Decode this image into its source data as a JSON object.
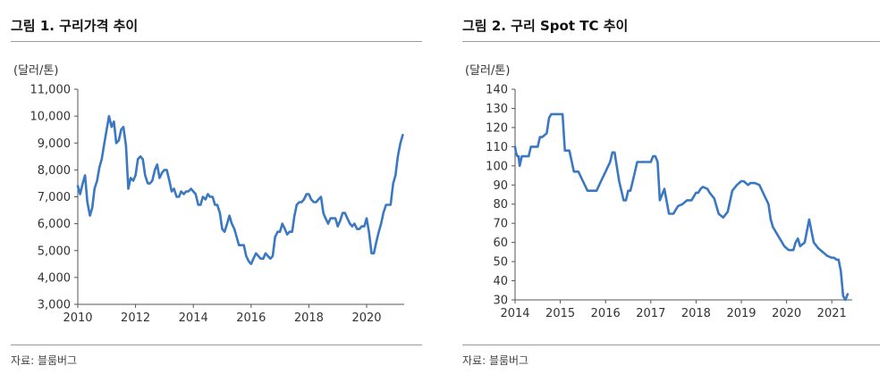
{
  "panels": [
    {
      "title": "그림 1.  구리가격 추이",
      "unit": "(달러/톤)",
      "source": "자료: 블룸버그"
    },
    {
      "title": "그림 2.  구리 Spot TC 추이",
      "unit": "(달러/톤)",
      "source": "자료: 블룸버그"
    }
  ],
  "chart_data": [
    {
      "type": "line",
      "title": "그림 1.  구리가격 추이",
      "ylabel": "(달러/톤)",
      "xlim": [
        2010,
        2021.3
      ],
      "ylim": [
        3000,
        11000
      ],
      "x_ticks": [
        2010,
        2012,
        2014,
        2016,
        2018,
        2020
      ],
      "x_tick_labels": [
        "2010",
        "2012",
        "2014",
        "2016",
        "2018",
        "2020"
      ],
      "y_ticks": [
        3000,
        4000,
        5000,
        6000,
        7000,
        8000,
        9000,
        10000,
        11000
      ],
      "y_tick_labels": [
        "3,000",
        "4,000",
        "5,000",
        "6,000",
        "7,000",
        "8,000",
        "9,000",
        "10,000",
        "11,000"
      ],
      "color": "#3a78c3",
      "series": [
        {
          "x": [
            2010.0,
            2010.08,
            2010.17,
            2010.25,
            2010.33,
            2010.42,
            2010.5,
            2010.58,
            2010.67,
            2010.75,
            2010.83,
            2010.92,
            2011.0,
            2011.08,
            2011.17,
            2011.25,
            2011.33,
            2011.42,
            2011.5,
            2011.58,
            2011.67,
            2011.75,
            2011.83,
            2011.92,
            2012.0,
            2012.08,
            2012.17,
            2012.25,
            2012.33,
            2012.42,
            2012.5,
            2012.58,
            2012.67,
            2012.75,
            2012.83,
            2012.92,
            2013.0,
            2013.08,
            2013.17,
            2013.25,
            2013.33,
            2013.42,
            2013.5,
            2013.58,
            2013.67,
            2013.75,
            2013.83,
            2013.92,
            2014.0,
            2014.08,
            2014.17,
            2014.25,
            2014.33,
            2014.42,
            2014.5,
            2014.58,
            2014.67,
            2014.75,
            2014.83,
            2014.92,
            2015.0,
            2015.08,
            2015.17,
            2015.25,
            2015.33,
            2015.42,
            2015.5,
            2015.58,
            2015.67,
            2015.75,
            2015.83,
            2015.92,
            2016.0,
            2016.08,
            2016.17,
            2016.25,
            2016.33,
            2016.42,
            2016.5,
            2016.58,
            2016.67,
            2016.75,
            2016.83,
            2016.92,
            2017.0,
            2017.08,
            2017.17,
            2017.25,
            2017.33,
            2017.42,
            2017.5,
            2017.58,
            2017.67,
            2017.75,
            2017.83,
            2017.92,
            2018.0,
            2018.08,
            2018.17,
            2018.25,
            2018.33,
            2018.42,
            2018.5,
            2018.58,
            2018.67,
            2018.75,
            2018.83,
            2018.92,
            2019.0,
            2019.08,
            2019.17,
            2019.25,
            2019.33,
            2019.42,
            2019.5,
            2019.58,
            2019.67,
            2019.75,
            2019.83,
            2019.92,
            2020.0,
            2020.08,
            2020.17,
            2020.25,
            2020.33,
            2020.42,
            2020.5,
            2020.58,
            2020.67,
            2020.75,
            2020.83,
            2020.92,
            2021.0,
            2021.08,
            2021.17,
            2021.25
          ],
          "y": [
            7400,
            7100,
            7500,
            7800,
            6800,
            6300,
            6600,
            7300,
            7600,
            8100,
            8400,
            9000,
            9500,
            10000,
            9600,
            9800,
            9000,
            9100,
            9500,
            9600,
            8900,
            7300,
            7700,
            7600,
            7800,
            8400,
            8500,
            8400,
            7800,
            7500,
            7500,
            7600,
            8000,
            8200,
            7700,
            7900,
            8000,
            8000,
            7600,
            7200,
            7300,
            7000,
            7000,
            7200,
            7100,
            7200,
            7200,
            7300,
            7200,
            7100,
            6700,
            6700,
            7000,
            6900,
            7100,
            7000,
            7000,
            6700,
            6700,
            6400,
            5800,
            5700,
            6000,
            6300,
            6000,
            5800,
            5500,
            5200,
            5200,
            5200,
            4800,
            4600,
            4500,
            4700,
            4900,
            4800,
            4700,
            4700,
            4900,
            4800,
            4700,
            4800,
            5500,
            5700,
            5700,
            6000,
            5800,
            5600,
            5700,
            5700,
            6300,
            6700,
            6800,
            6800,
            6900,
            7100,
            7100,
            6900,
            6800,
            6800,
            6900,
            7000,
            6400,
            6200,
            6000,
            6200,
            6200,
            6200,
            5900,
            6100,
            6400,
            6400,
            6200,
            6000,
            5900,
            6000,
            5800,
            5800,
            5900,
            5900,
            6200,
            5700,
            4900,
            4900,
            5300,
            5700,
            6000,
            6400,
            6700,
            6700,
            6700,
            7500,
            7800,
            8500,
            9000,
            9300
          ]
        }
      ]
    },
    {
      "type": "line",
      "title": "그림 2.  구리 Spot TC 추이",
      "ylabel": "(달러/톤)",
      "xlim": [
        2014,
        2021.45
      ],
      "ylim": [
        30,
        140
      ],
      "x_ticks": [
        2014,
        2015,
        2016,
        2017,
        2018,
        2019,
        2020,
        2021
      ],
      "x_tick_labels": [
        "2014",
        "2015",
        "2016",
        "2017",
        "2018",
        "2019",
        "2020",
        "2021"
      ],
      "y_ticks": [
        30,
        40,
        50,
        60,
        70,
        80,
        90,
        100,
        110,
        120,
        130,
        140
      ],
      "y_tick_labels": [
        "30",
        "40",
        "50",
        "60",
        "70",
        "80",
        "90",
        "100",
        "110",
        "120",
        "130",
        "140"
      ],
      "color": "#3a78c3",
      "series": [
        {
          "x": [
            2014.0,
            2014.02,
            2014.05,
            2014.08,
            2014.1,
            2014.15,
            2014.2,
            2014.25,
            2014.3,
            2014.35,
            2014.4,
            2014.5,
            2014.55,
            2014.6,
            2014.7,
            2014.75,
            2014.8,
            2014.9,
            2015.0,
            2015.05,
            2015.1,
            2015.2,
            2015.3,
            2015.4,
            2015.5,
            2015.6,
            2015.7,
            2015.8,
            2015.9,
            2016.0,
            2016.1,
            2016.15,
            2016.2,
            2016.3,
            2016.4,
            2016.45,
            2016.5,
            2016.55,
            2016.6,
            2016.7,
            2016.8,
            2016.9,
            2017.0,
            2017.05,
            2017.1,
            2017.15,
            2017.2,
            2017.3,
            2017.4,
            2017.5,
            2017.55,
            2017.6,
            2017.7,
            2017.8,
            2017.9,
            2018.0,
            2018.05,
            2018.1,
            2018.15,
            2018.25,
            2018.3,
            2018.4,
            2018.5,
            2018.6,
            2018.7,
            2018.8,
            2018.9,
            2019.0,
            2019.05,
            2019.1,
            2019.15,
            2019.2,
            2019.3,
            2019.4,
            2019.5,
            2019.6,
            2019.65,
            2019.7,
            2019.75,
            2019.8,
            2019.85,
            2019.9,
            2019.95,
            2020.0,
            2020.05,
            2020.1,
            2020.15,
            2020.2,
            2020.25,
            2020.3,
            2020.4,
            2020.5,
            2020.6,
            2020.7,
            2020.8,
            2020.9,
            2021.0,
            2021.05,
            2021.1,
            2021.15,
            2021.2,
            2021.25,
            2021.3,
            2021.35
          ],
          "y": [
            110,
            107,
            105,
            105,
            100,
            105,
            105,
            105,
            105,
            110,
            110,
            110,
            115,
            115,
            117,
            125,
            127,
            127,
            127,
            127,
            108,
            108,
            97,
            97,
            92,
            87,
            87,
            87,
            92,
            97,
            102,
            107,
            107,
            92,
            82,
            82,
            87,
            87,
            92,
            102,
            102,
            102,
            102,
            105,
            105,
            102,
            82,
            88,
            75,
            75,
            77,
            79,
            80,
            82,
            82,
            86,
            86,
            88,
            89,
            88,
            86,
            83,
            75,
            73,
            76,
            87,
            90,
            92,
            92,
            91,
            90,
            91,
            91,
            90,
            85,
            80,
            72,
            68,
            66,
            64,
            62,
            60,
            58,
            57,
            56,
            56,
            56,
            60,
            62,
            58,
            60,
            72,
            60,
            57,
            55,
            53,
            52,
            52,
            51,
            51,
            45,
            32,
            30,
            33
          ]
        }
      ]
    }
  ]
}
